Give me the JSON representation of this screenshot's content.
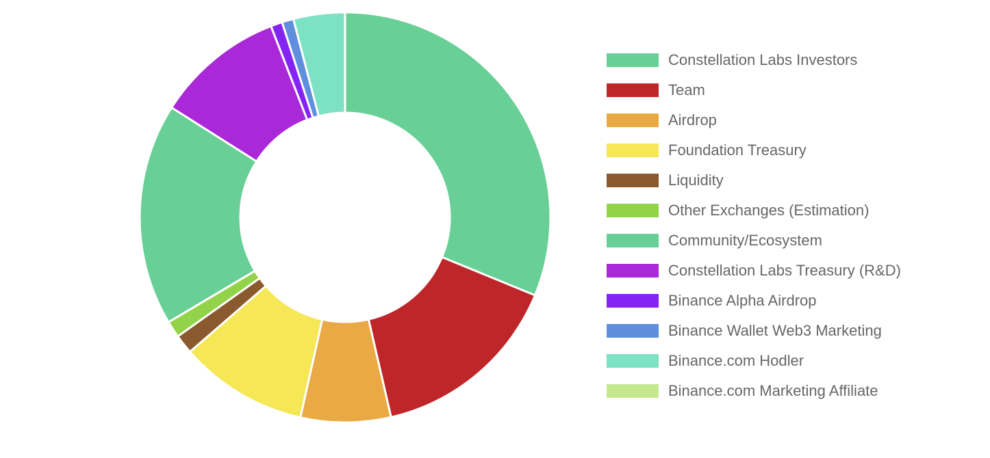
{
  "chart_data": {
    "type": "pie",
    "variant": "doughnut",
    "legend_position": "right",
    "labels": [
      "Constellation Labs Investors",
      "Team",
      "Airdrop",
      "Foundation Treasury",
      "Liquidity",
      "Other Exchanges (Estimation)",
      "Community/Ecosystem",
      "Constellation Labs Treasury (R&D)",
      "Binance Alpha Airdrop",
      "Binance Wallet Web3 Marketing",
      "Binance.com Hodler",
      "Binance.com Marketing Affiliate"
    ],
    "values": [
      30.8,
      15.0,
      7.0,
      10.0,
      1.5,
      1.3,
      17.3,
      10.0,
      0.9,
      0.9,
      4.0,
      0.0
    ],
    "colors": [
      "#68cf96",
      "#bf2629",
      "#e9aa45",
      "#f5e755",
      "#8a5a2e",
      "#92d34a",
      "#68cf96",
      "#a929d9",
      "#8424f2",
      "#5f8fdc",
      "#7de1c4",
      "#c5e88f"
    ]
  }
}
